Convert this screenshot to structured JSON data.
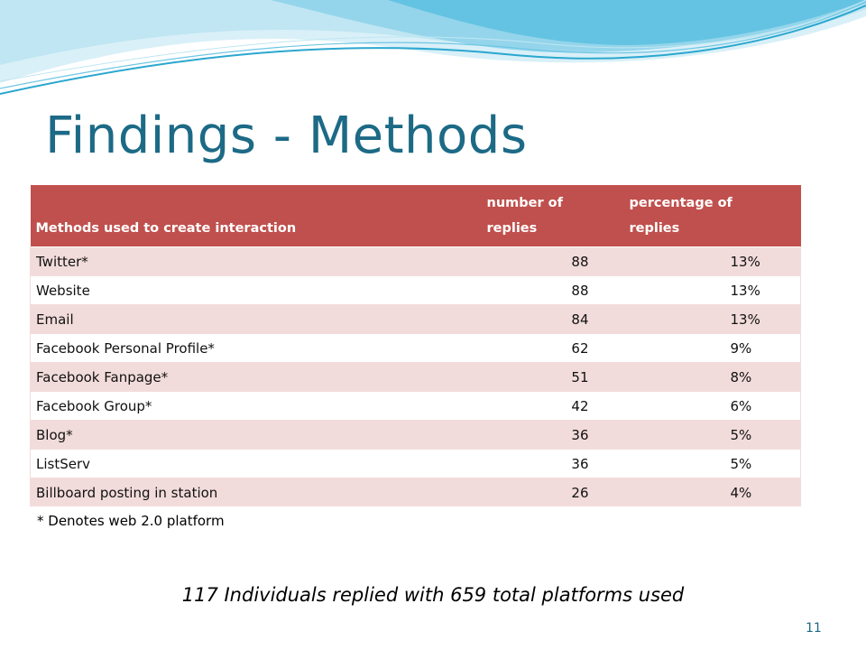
{
  "slide": {
    "title": "Findings - Methods",
    "footnote": "* Denotes web 2.0 platform",
    "summary": "117 Individuals replied with 659 total platforms used",
    "page_number": "11"
  },
  "table": {
    "headers": {
      "method": "Methods used to create interaction",
      "number_line1": "number of",
      "number_line2": "replies",
      "percent_line1": "percentage of",
      "percent_line2": "replies"
    },
    "rows": [
      {
        "method": "Twitter*",
        "replies": "88",
        "percent": "13%"
      },
      {
        "method": "Website",
        "replies": "88",
        "percent": "13%"
      },
      {
        "method": "Email",
        "replies": "84",
        "percent": "13%"
      },
      {
        "method": "Facebook Personal Profile*",
        "replies": "62",
        "percent": "9%"
      },
      {
        "method": "Facebook Fanpage*",
        "replies": "51",
        "percent": "8%"
      },
      {
        "method": "Facebook Group*",
        "replies": "42",
        "percent": "6%"
      },
      {
        "method": "Blog*",
        "replies": "36",
        "percent": "5%"
      },
      {
        "method": "ListServ",
        "replies": "36",
        "percent": "5%"
      },
      {
        "method": "Billboard posting in station",
        "replies": "26",
        "percent": "4%"
      }
    ]
  },
  "colors": {
    "title": "#1c6a86",
    "header_bg": "#c0504d",
    "row_band": "#f2dcdb",
    "wave_light": "#bfe6f2",
    "wave_dark": "#2aa7cf"
  }
}
